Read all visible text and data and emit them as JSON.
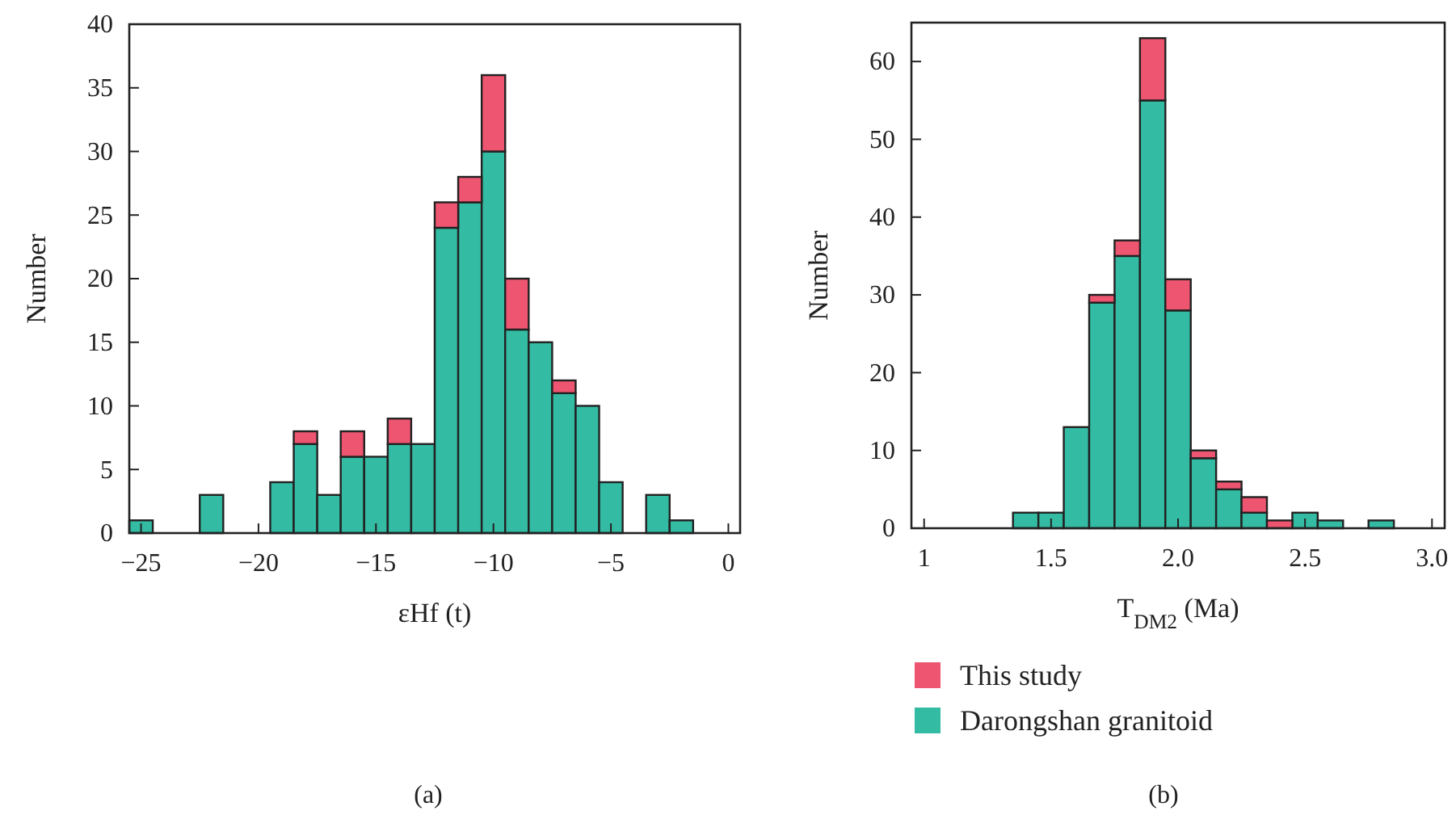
{
  "chart_data": [
    {
      "type": "bar",
      "xlabel": "εHf (t)",
      "ylabel": "Number",
      "stacked": true,
      "legend": false,
      "annotations": [
        "(a)"
      ],
      "x": [
        -25,
        -24,
        -23,
        -22,
        -21,
        -20,
        -19,
        -18,
        -17,
        -16,
        -15,
        -14,
        -13,
        -12,
        -11,
        -10,
        -9,
        -8,
        -7,
        -6,
        -5,
        -4,
        -3,
        -2
      ],
      "series": [
        {
          "color": "#33bba3",
          "values": [
            1,
            0,
            0,
            3,
            0,
            0,
            4,
            7,
            3,
            6,
            6,
            7,
            7,
            24,
            26,
            30,
            16,
            15,
            11,
            10,
            4,
            0,
            3,
            1
          ]
        },
        {
          "color": "#ee5570",
          "values": [
            0,
            0,
            0,
            0,
            0,
            0,
            0,
            1,
            0,
            2,
            0,
            2,
            0,
            2,
            2,
            6,
            4,
            0,
            1,
            0,
            0,
            0,
            0,
            0
          ]
        }
      ],
      "xlim": [
        -25.5,
        0.5
      ],
      "xticks": [
        -25,
        -20,
        -15,
        -10,
        -5,
        0
      ],
      "ylim": [
        0,
        40
      ],
      "yticks": [
        0,
        5,
        10,
        15,
        20,
        25,
        30,
        35,
        40
      ]
    },
    {
      "type": "bar",
      "xlabel": "T$_{DM2}$ (Ma)",
      "ylabel": "Number",
      "stacked": true,
      "legend": "bottom",
      "annotations": [
        "(b)"
      ],
      "x": [
        1.4,
        1.5,
        1.6,
        1.7,
        1.8,
        1.9,
        2.0,
        2.1,
        2.2,
        2.3,
        2.4,
        2.5,
        2.6,
        2.7,
        2.8
      ],
      "series": [
        {
          "name": "Darongshan granitoid",
          "color": "#33bba3",
          "values": [
            2,
            2,
            13,
            29,
            35,
            55,
            28,
            9,
            5,
            2,
            0,
            2,
            1,
            0,
            1
          ]
        },
        {
          "name": "This study",
          "color": "#ee5570",
          "values": [
            0,
            0,
            0,
            1,
            2,
            8,
            4,
            1,
            1,
            2,
            1,
            0,
            0,
            0,
            0
          ]
        }
      ],
      "xlim": [
        0.95,
        3.05
      ],
      "xticks": [
        1,
        {
          "value": 1.5,
          "label": "1.5"
        },
        {
          "value": 2,
          "label": "2.0"
        },
        {
          "value": 2.5,
          "label": "2.5"
        },
        {
          "value": 3,
          "label": "3.0"
        }
      ],
      "ylim": [
        0,
        65
      ],
      "yticks": [
        0,
        10,
        20,
        30,
        40,
        50,
        60
      ]
    }
  ]
}
